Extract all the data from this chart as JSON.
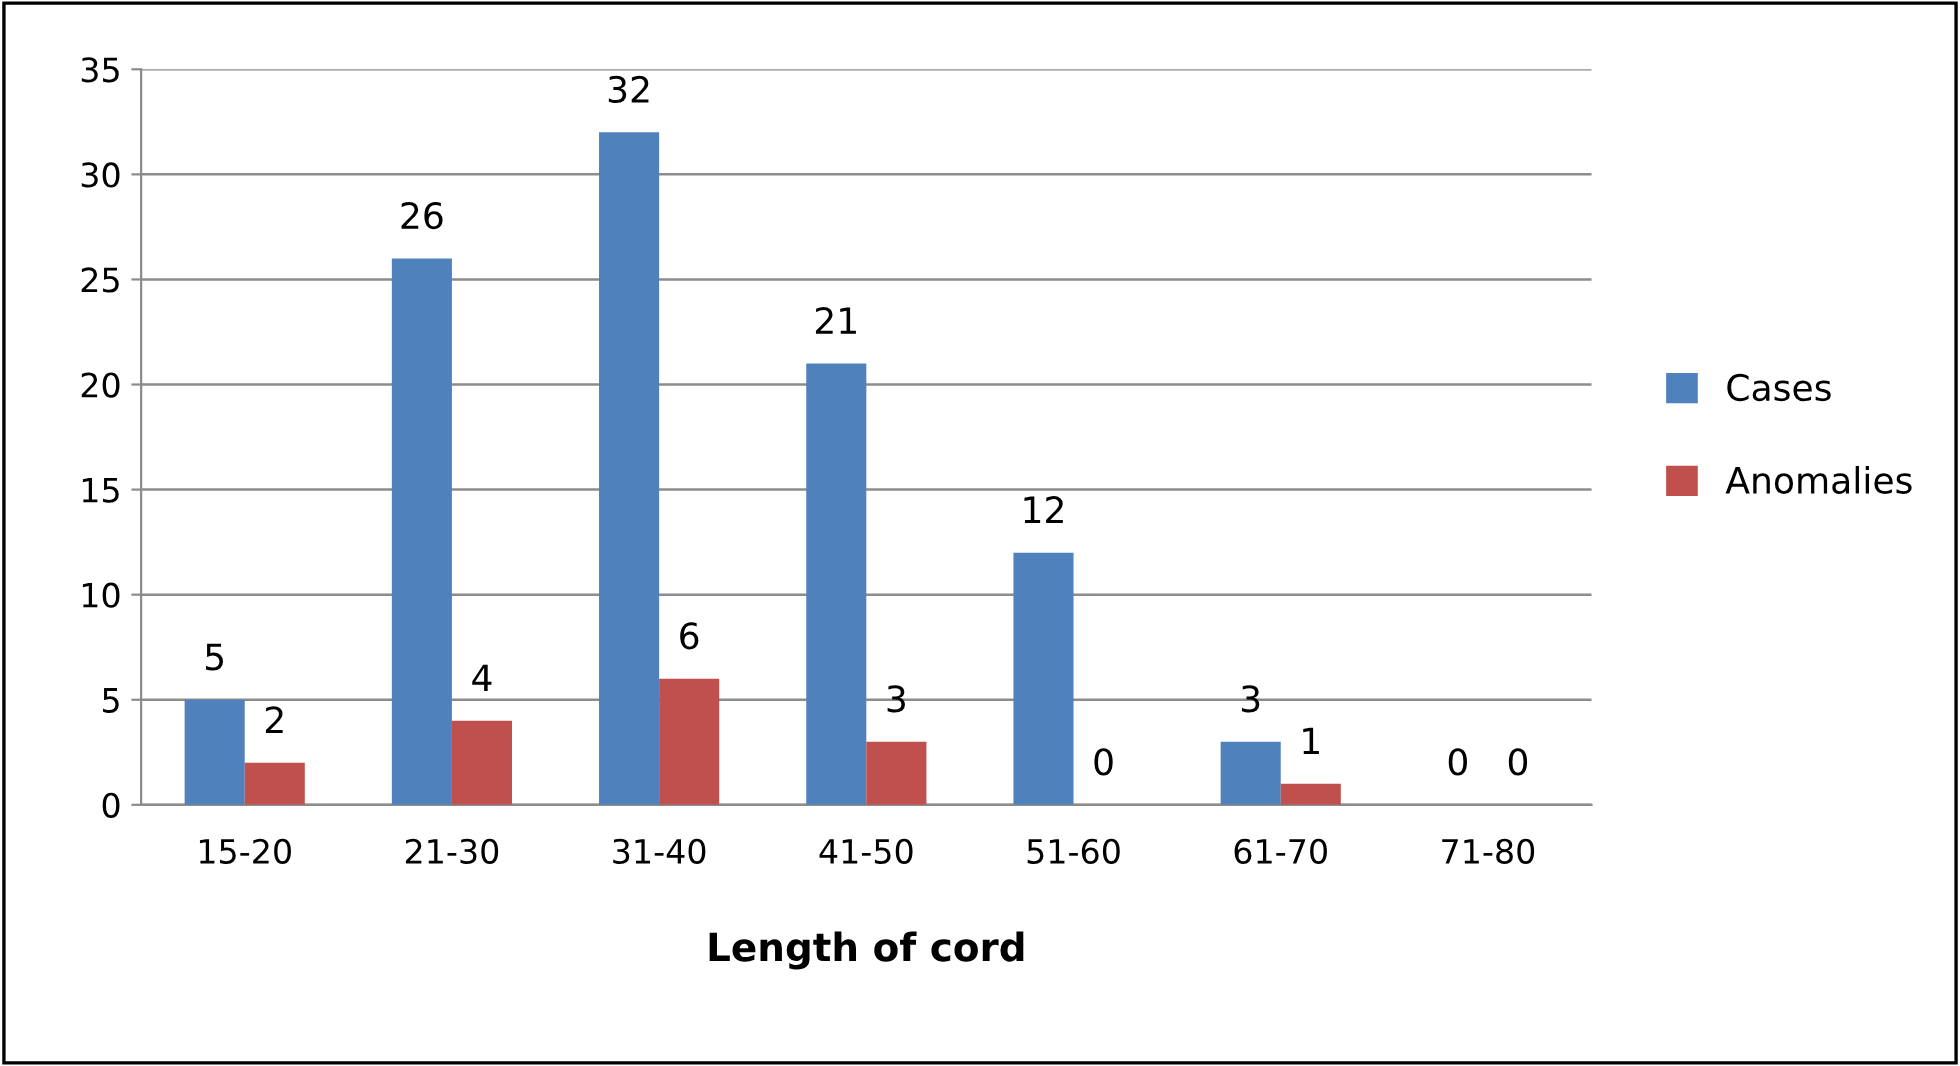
{
  "chart_data": {
    "type": "bar",
    "xlabel": "Length of cord",
    "categories": [
      "15-20",
      "21-30",
      "31-40",
      "41-50",
      "51-60",
      "61-70",
      "71-80"
    ],
    "series": [
      {
        "name": "Cases",
        "color": "#4f81bd",
        "values": [
          5,
          26,
          32,
          21,
          12,
          3,
          0
        ]
      },
      {
        "name": "Anomalies",
        "color": "#c0504d",
        "values": [
          2,
          4,
          6,
          3,
          0,
          1,
          0
        ]
      }
    ],
    "ylim": [
      0,
      35
    ],
    "yticks": [
      0,
      5,
      10,
      15,
      20,
      25,
      30,
      35
    ],
    "grid": "y",
    "legend": "right",
    "data_labels": true
  }
}
